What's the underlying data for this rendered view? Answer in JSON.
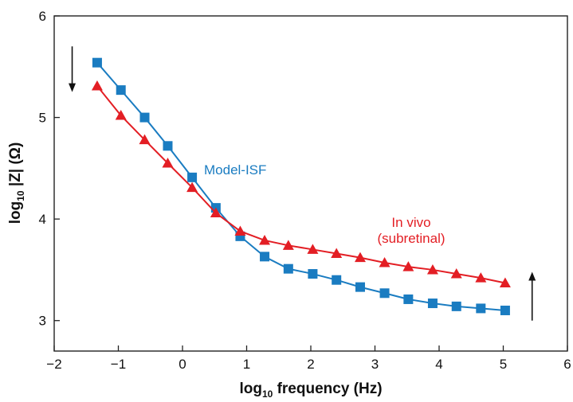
{
  "chart_data": {
    "type": "line",
    "xlabel": {
      "main": "log",
      "sub": "10",
      "rest": " frequency (Hz)"
    },
    "ylabel": {
      "main": "log",
      "sub": "10",
      "rest": " |Z| (Ω)"
    },
    "xlim": [
      -2,
      6
    ],
    "ylim": [
      2.7,
      6
    ],
    "xticks": [
      -2,
      -1,
      0,
      1,
      2,
      3,
      4,
      5,
      6
    ],
    "xtick_labels": [
      "−2",
      "−1",
      "0",
      "1",
      "2",
      "3",
      "4",
      "5",
      "6"
    ],
    "yticks": [
      3,
      4,
      5,
      6
    ],
    "ytick_labels": [
      "3",
      "4",
      "5",
      "6"
    ],
    "grid": false,
    "legend": "none",
    "series": [
      {
        "label": "Model-ISF",
        "color": "#1a7cc1",
        "marker": "square",
        "x": [
          -1.33,
          -0.96,
          -0.59,
          -0.23,
          0.15,
          0.52,
          0.9,
          1.28,
          1.65,
          2.03,
          2.4,
          2.77,
          3.15,
          3.52,
          3.9,
          4.27,
          4.65,
          5.03
        ],
        "y": [
          5.54,
          5.27,
          5.0,
          4.72,
          4.41,
          4.11,
          3.83,
          3.63,
          3.51,
          3.46,
          3.4,
          3.33,
          3.27,
          3.21,
          3.17,
          3.14,
          3.12,
          3.1
        ]
      },
      {
        "label_lines": [
          "In vivo",
          "(subretinal)"
        ],
        "color": "#e31e24",
        "marker": "triangle",
        "x": [
          -1.33,
          -0.96,
          -0.59,
          -0.23,
          0.15,
          0.52,
          0.9,
          1.28,
          1.65,
          2.03,
          2.4,
          2.77,
          3.15,
          3.52,
          3.9,
          4.27,
          4.65,
          5.03
        ],
        "y": [
          5.31,
          5.02,
          4.78,
          4.55,
          4.31,
          4.06,
          3.88,
          3.79,
          3.74,
          3.7,
          3.66,
          3.62,
          3.57,
          3.53,
          3.5,
          3.46,
          3.42,
          3.37
        ]
      }
    ],
    "arrows": [
      {
        "x": -1.72,
        "y_from": 5.7,
        "y_to": 5.25,
        "direction": "down"
      },
      {
        "x": 5.45,
        "y_from": 3.0,
        "y_to": 3.48,
        "direction": "up"
      }
    ]
  }
}
